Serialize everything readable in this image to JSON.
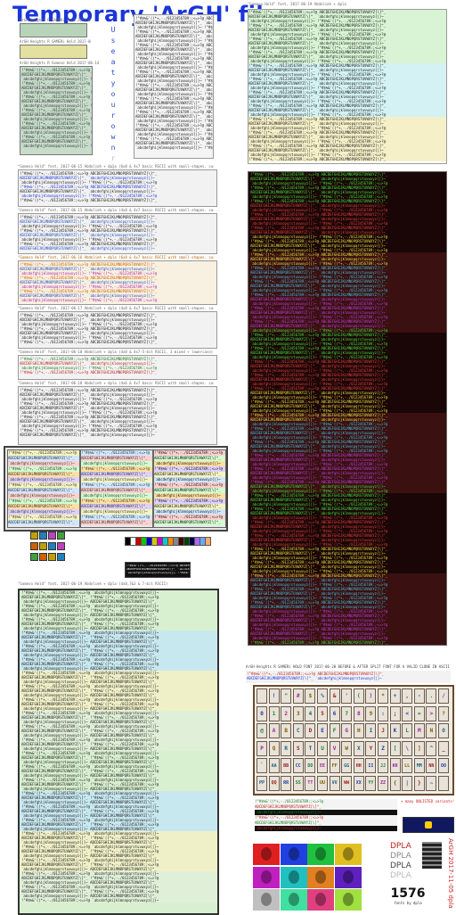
{
  "page": {
    "title": "Temporary 'ArGH' files",
    "vertical_text": [
      "U",
      "s",
      "e",
      "a",
      "t",
      "y",
      "o",
      "u",
      "r",
      "o",
      "w",
      "n",
      "r",
      "i",
      "s",
      "k"
    ]
  },
  "captions": {
    "c1": "ArGH Heights R GAMERi Hold 2017-06-12-dpla",
    "c2": "ArGH Heights R GAMERi Hold 2017-06-13-dpla",
    "c3": "ArGH Heights R Gomeso Hold 2017-06-14-dpla",
    "c4": "\"Gomeso Hold\" font, 2017-06-15 Abdolieh + dpla (6x8 & 4x7 basic RSCII with small-shapes. cuse & lowercase)",
    "c5": "\"Gomeso Hold\" font, 2017-06-15 Abdolieh + dpla (4x8 & 4x7 basic RSCII with small-shapes. cuse & lowercase)",
    "c6": "\"Gomeso Hold\" font, 2017-06-16 Abdolieh + dpla (6x8 & 4x7 basic RSCII with small-shapes. cuse & lowercase)",
    "c7": "\"Gomeso Hold\" font, 2017-06-17 Abdolieh + dpla (4x8 & 4x7 basic RSCII with small-shapes. cuse & lowercase)",
    "c8": "\"Gomeso Hold\" font, 2017-06-18 Abdolieh + dpla (4x8 & 4x7-5-bit RSCII, 3 mixed + lowercase)",
    "c9": "\"Gomeso Hold\" font, 2017-06-18 Abdolieh + dpla (4x6 & 4x7 basic RSCII with small-shapes. cuse & lowercase)",
    "c10": "\"Gomeso Hold\" font, 2017-06-19 Abdolieh + dpla (4x8,7&3 & 7-bit RSCII)",
    "c11": "\"Gomeso Hold\" font, 2017-06-19 Abdolieh + dpla",
    "c12": "ArGH Heights R SAMERi HOLD FONT 2017-06-20 BEFORE & AFTER SPLIT FONT FOR A VALID CLONE IN ASCII BLOCK",
    "c13": "ArGH 2017-11-05 dpla"
  },
  "glyph_lines": [
    " !\"#$%&'()*+,-./0123456789:;<=>?@",
    "ABCDEFGHIJKLMNOPQRSTUVWXYZ[\\]^_",
    "`abcdefghijklmnopqrstuvwxyz{|}~"
  ],
  "key_rows": [
    [
      "",
      "!",
      "\"",
      "#",
      "$",
      "%",
      "&",
      "'",
      "(",
      ")",
      "*",
      "+",
      ",",
      "-",
      ".",
      "/"
    ],
    [
      "0",
      "1",
      "2",
      "3",
      "4",
      "5",
      "6",
      "7",
      "8",
      "9",
      ":",
      ";",
      "<",
      "=",
      ">",
      "?"
    ],
    [
      "@",
      "A",
      "B",
      "C",
      "D",
      "E",
      "F",
      "G",
      "H",
      "I",
      "J",
      "K",
      "L",
      "M",
      "N",
      "O"
    ],
    [
      "P",
      "Q",
      "R",
      "S",
      "T",
      "U",
      "V",
      "W",
      "X",
      "Y",
      "Z",
      "[",
      "\\",
      "]",
      "^",
      "_"
    ],
    [
      "`",
      "AA",
      "BB",
      "CC",
      "DD",
      "EE",
      "FF",
      "GG",
      "HH",
      "II",
      "JJ",
      "KK",
      "LL",
      "MM",
      "NN",
      "OO"
    ],
    [
      "PP",
      "QQ",
      "RR",
      "SS",
      "TT",
      "UU",
      "VV",
      "WW",
      "XX",
      "YY",
      "ZZ",
      "{",
      "|",
      "}",
      "~",
      ""
    ]
  ],
  "badges": {
    "counter": "1576",
    "counter_caption": "fonts by dpla",
    "dpla_words": [
      "DPLA",
      "DPLA",
      "DPLA",
      "DPLA"
    ],
    "many_unlisted": "+ many UNLISTED variants!"
  },
  "colors": {
    "title": "#1a36d8",
    "accent_red": "#cc2020",
    "dark_bg": "#3a1010",
    "pale_green": "#d8f4d4",
    "pale_cyan": "#d4f2f4",
    "pale_yellow": "#f6f0c8"
  }
}
